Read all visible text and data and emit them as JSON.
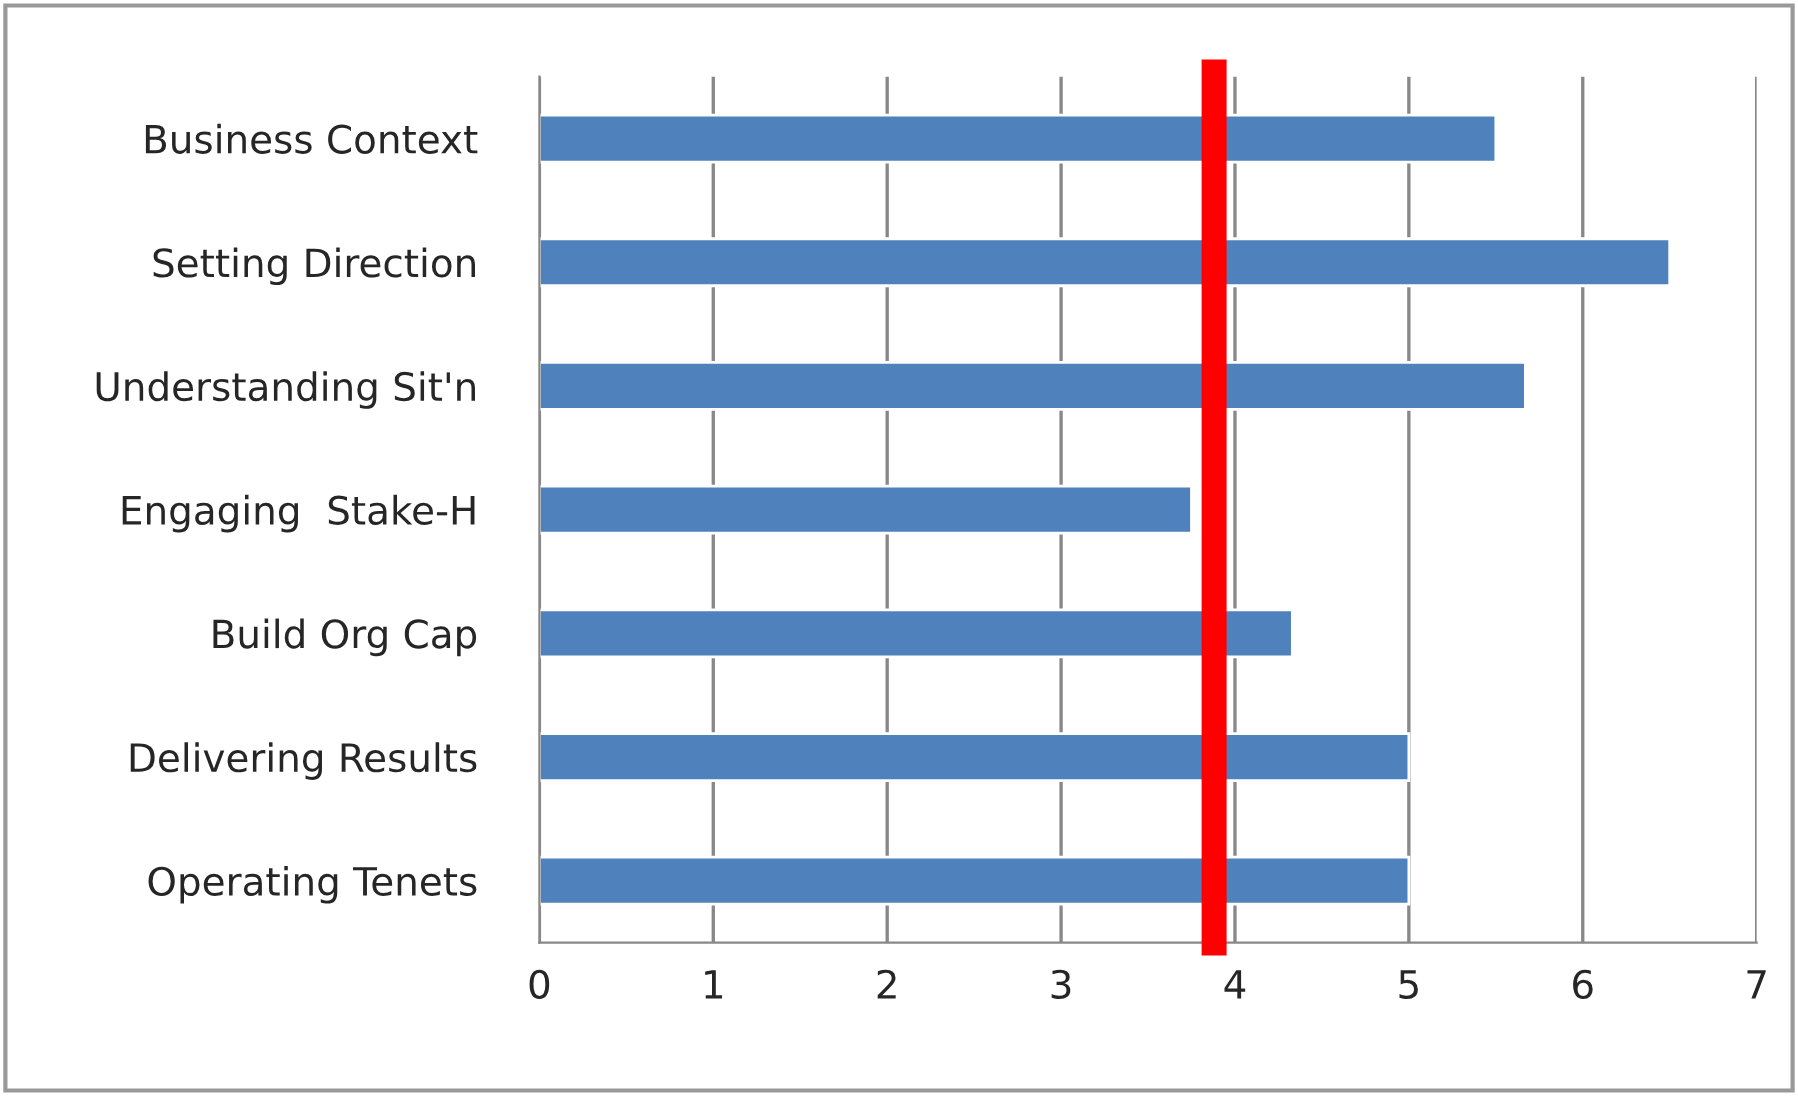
{
  "chart_data": {
    "type": "bar",
    "orientation": "horizontal",
    "categories": [
      "Business Context",
      "Setting Direction",
      "Understanding Sit'n",
      "Engaging  Stake-H",
      "Build Org Cap",
      "Delivering Results",
      "Operating Tenets"
    ],
    "values": [
      5.5,
      6.5,
      5.67,
      3.75,
      4.33,
      5.0,
      5.0
    ],
    "color": "#4f81bd",
    "xlim": [
      0,
      7
    ],
    "xticks": [
      0,
      1,
      2,
      3,
      4,
      5,
      6,
      7
    ],
    "grid": "x",
    "ref_lines": [
      {
        "axis": "x",
        "value": 3.88,
        "color": "#ff0000"
      }
    ]
  }
}
